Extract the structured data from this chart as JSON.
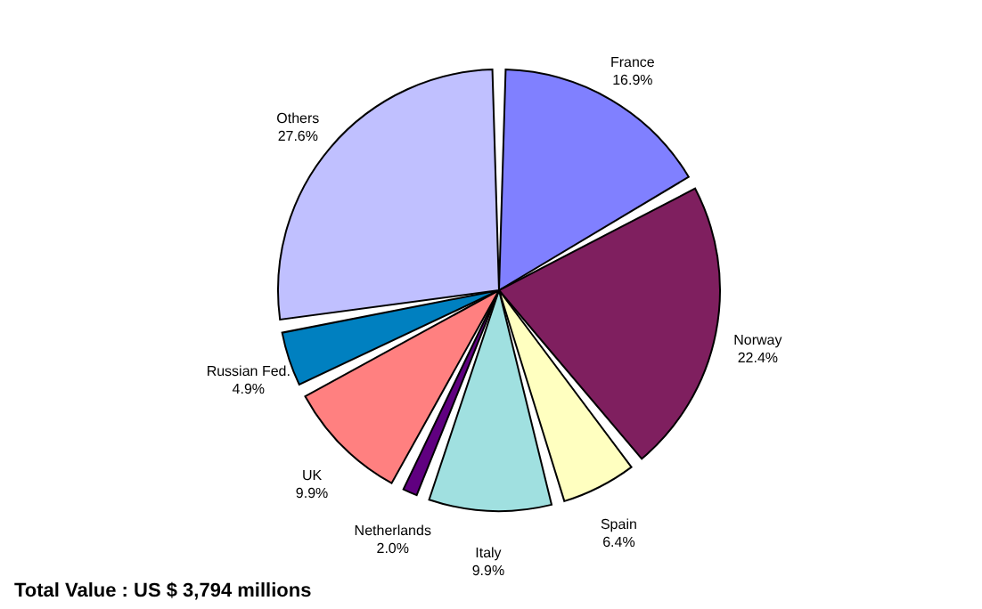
{
  "chart_data": {
    "type": "pie",
    "categories": [
      "France",
      "Norway",
      "Spain",
      "Italy",
      "Netherlands",
      "UK",
      "Russian Fed.",
      "Others"
    ],
    "values": [
      16.9,
      22.4,
      6.4,
      9.9,
      2.0,
      9.9,
      4.9,
      27.6
    ],
    "value_labels": [
      "16.9%",
      "22.4%",
      "6.4%",
      "9.9%",
      "2.0%",
      "9.9%",
      "4.9%",
      "27.6%"
    ],
    "colors": [
      "#8080ff",
      "#7f1f5f",
      "#ffffc0",
      "#a0e0e0",
      "#600080",
      "#ff8080",
      "#0080c0",
      "#c0c0ff"
    ],
    "annotations": [
      "Total Value : US $ 3,794 millions"
    ]
  }
}
